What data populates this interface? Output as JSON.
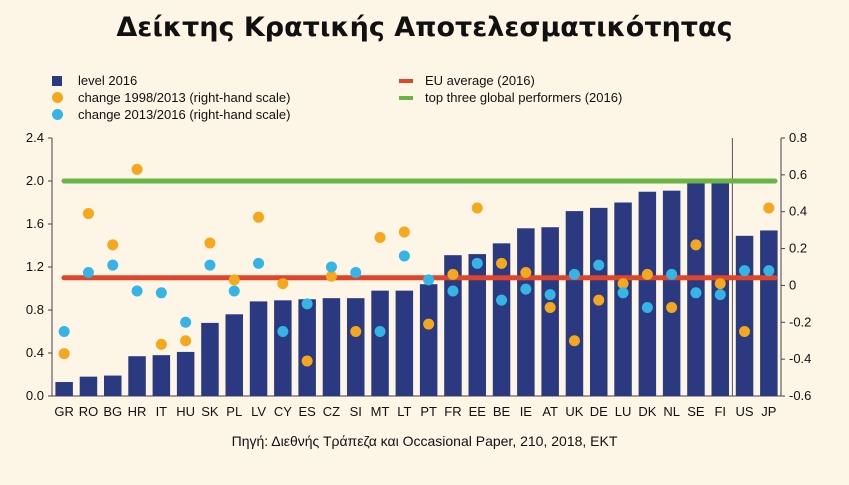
{
  "title": "Δείκτης Κρατικής Αποτελεσματικότητας",
  "source": "Πηγή: Διεθνής Τράπεζα και Occasional Paper, 210, 2018, ΕΚΤ",
  "legend": {
    "level": "level 2016",
    "change1": "change 1998/2013 (right-hand scale)",
    "change2": "change 2013/2016 (right-hand scale)",
    "eu": "EU average (2016)",
    "top3": "top three global performers (2016)"
  },
  "colors": {
    "bar": "#2b3a80",
    "change1": "#f5a81c",
    "change2": "#35b5e5",
    "eu": "#e0452a",
    "top3": "#6ab445",
    "background": "#fdf5e6"
  },
  "chart_data": {
    "type": "bar",
    "categories": [
      "GR",
      "RO",
      "BG",
      "HR",
      "IT",
      "HU",
      "SK",
      "PL",
      "LV",
      "CY",
      "ES",
      "CZ",
      "SI",
      "MT",
      "LT",
      "PT",
      "FR",
      "EE",
      "BE",
      "IE",
      "AT",
      "UK",
      "DE",
      "LU",
      "DK",
      "NL",
      "SE",
      "FI",
      "US",
      "JP"
    ],
    "series": [
      {
        "name": "level 2016",
        "axis": "left",
        "values": [
          0.13,
          0.18,
          0.19,
          0.37,
          0.38,
          0.41,
          0.68,
          0.76,
          0.88,
          0.89,
          0.9,
          0.91,
          0.91,
          0.98,
          0.98,
          1.04,
          1.31,
          1.32,
          1.42,
          1.56,
          1.57,
          1.72,
          1.75,
          1.8,
          1.9,
          1.91,
          1.98,
          1.99,
          1.49,
          1.54
        ]
      },
      {
        "name": "change 1998/2013 (right-hand scale)",
        "axis": "right",
        "values": [
          -0.37,
          0.39,
          0.22,
          0.63,
          -0.32,
          -0.3,
          0.23,
          0.03,
          0.37,
          0.01,
          -0.41,
          0.05,
          -0.25,
          0.26,
          0.29,
          -0.21,
          0.06,
          0.42,
          0.12,
          0.07,
          -0.12,
          -0.3,
          -0.08,
          0.01,
          0.06,
          -0.12,
          0.22,
          0.01,
          -0.25,
          0.42
        ]
      },
      {
        "name": "change 2013/2016 (right-hand scale)",
        "axis": "right",
        "values": [
          -0.25,
          0.07,
          0.11,
          -0.03,
          -0.04,
          -0.2,
          0.11,
          -0.03,
          0.12,
          -0.25,
          -0.1,
          0.1,
          0.07,
          -0.25,
          0.16,
          0.03,
          -0.03,
          0.12,
          -0.08,
          -0.02,
          -0.05,
          0.06,
          0.11,
          -0.04,
          -0.12,
          0.06,
          -0.04,
          -0.05,
          0.08,
          0.08
        ]
      }
    ],
    "reference_lines": [
      {
        "name": "EU average (2016)",
        "value": 1.1,
        "axis": "left"
      },
      {
        "name": "top three global performers (2016)",
        "value": 2.0,
        "axis": "left"
      }
    ],
    "y_left": {
      "min": 0.0,
      "max": 2.4,
      "ticks": [
        "0.0",
        "0.4",
        "0.8",
        "1.2",
        "1.6",
        "2.0",
        "2.4"
      ]
    },
    "y_right": {
      "min": -0.6,
      "max": 0.8,
      "ticks": [
        "-0.6",
        "-0.4",
        "-0.2",
        "0",
        "0.2",
        "0.4",
        "0.6",
        "0.8"
      ]
    },
    "separator_after": "FI",
    "grid": false,
    "legend_position": "top"
  }
}
